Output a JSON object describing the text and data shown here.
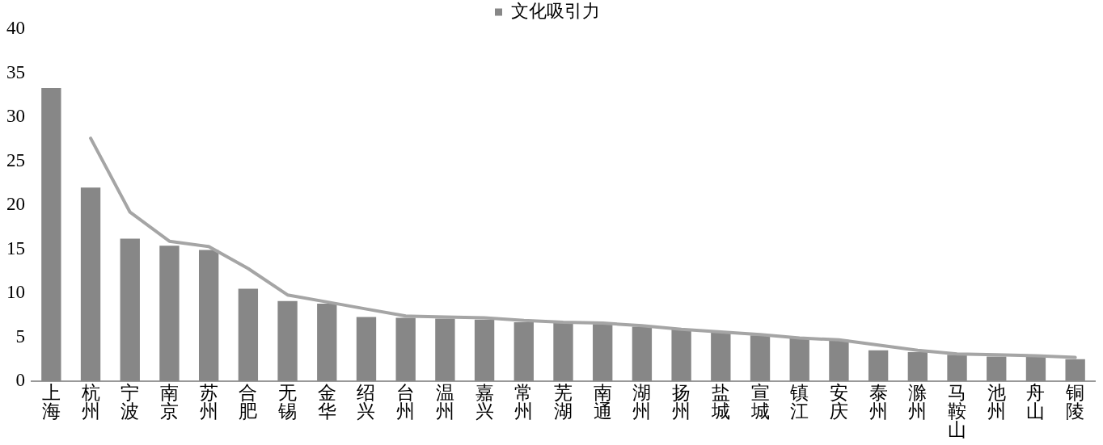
{
  "chart_data": {
    "type": "bar",
    "categories": [
      "上海",
      "杭州",
      "宁波",
      "南京",
      "苏州",
      "合肥",
      "无锡",
      "金华",
      "绍兴",
      "台州",
      "温州",
      "嘉兴",
      "常州",
      "芜湖",
      "南通",
      "湖州",
      "扬州",
      "盐城",
      "宣城",
      "镇江",
      "安庆",
      "泰州",
      "滁州",
      "马鞍山",
      "池州",
      "舟山",
      "铜陵"
    ],
    "series": [
      {
        "name": "文化吸引力",
        "color": "#878787",
        "values": [
          33.3,
          22.0,
          16.2,
          15.4,
          14.9,
          10.5,
          9.1,
          8.8,
          7.3,
          7.2,
          7.1,
          7.0,
          6.7,
          6.6,
          6.5,
          6.2,
          5.9,
          5.6,
          5.2,
          4.9,
          4.7,
          3.5,
          3.3,
          3.0,
          2.8,
          2.8,
          2.5
        ]
      },
      {
        "type": "line",
        "color": "#a5a5a5",
        "values": [
          null,
          27.6,
          19.2,
          15.9,
          15.3,
          12.8,
          9.8,
          9.0,
          8.2,
          7.4,
          7.3,
          7.2,
          6.9,
          6.7,
          6.6,
          6.3,
          5.9,
          5.6,
          5.3,
          4.9,
          4.7,
          4.1,
          3.5,
          3.1,
          3.0,
          2.9,
          2.7
        ]
      }
    ],
    "ylim": [
      0,
      40
    ],
    "yticks": [
      0,
      5,
      10,
      15,
      20,
      25,
      30,
      35,
      40
    ],
    "grid": false,
    "legend": "top",
    "marker": "none"
  }
}
